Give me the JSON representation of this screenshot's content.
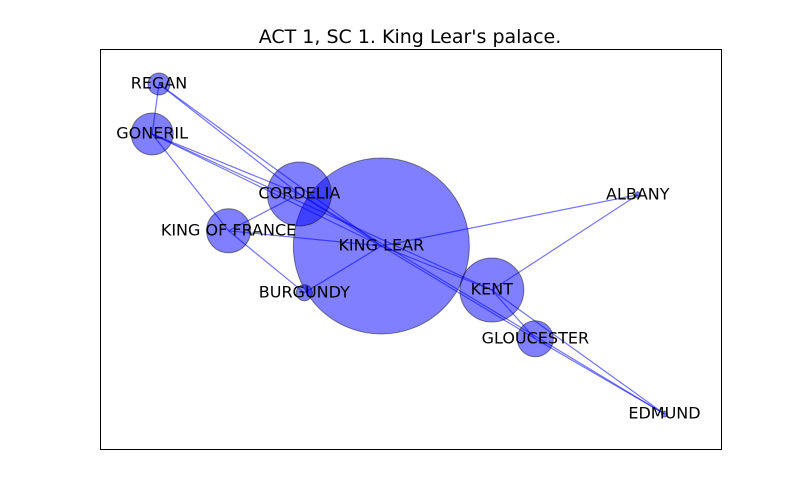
{
  "chart_data": {
    "type": "network",
    "title": "ACT 1, SC 1. King Lear's palace.",
    "xlim": [
      0,
      1
    ],
    "ylim": [
      0,
      1
    ],
    "node_color": "#0000ff",
    "edge_color": "#0000ff",
    "nodes": [
      {
        "id": "KING LEAR",
        "label": "KING LEAR",
        "x": 0.453,
        "y": 0.51,
        "size": 88
      },
      {
        "id": "CORDELIA",
        "label": "CORDELIA",
        "x": 0.321,
        "y": 0.64,
        "size": 32
      },
      {
        "id": "KENT",
        "label": "KENT",
        "x": 0.631,
        "y": 0.4,
        "size": 32
      },
      {
        "id": "GLOUCESTER",
        "label": "GLOUCESTER",
        "x": 0.701,
        "y": 0.278,
        "size": 18
      },
      {
        "id": "GONERIL",
        "label": "GONERIL",
        "x": 0.084,
        "y": 0.79,
        "size": 21
      },
      {
        "id": "KING OF FRANCE",
        "label": "KING OF FRANCE",
        "x": 0.207,
        "y": 0.548,
        "size": 22
      },
      {
        "id": "REGAN",
        "label": "REGAN",
        "x": 0.095,
        "y": 0.915,
        "size": 11
      },
      {
        "id": "BURGUNDY",
        "label": "BURGUNDY",
        "x": 0.329,
        "y": 0.393,
        "size": 8
      },
      {
        "id": "ALBANY",
        "label": "ALBANY",
        "x": 0.866,
        "y": 0.638,
        "size": 3
      },
      {
        "id": "EDMUND",
        "label": "EDMUND",
        "x": 0.909,
        "y": 0.09,
        "size": 3
      }
    ],
    "edges": [
      [
        "REGAN",
        "GONERIL"
      ],
      [
        "REGAN",
        "KING LEAR"
      ],
      [
        "REGAN",
        "CORDELIA"
      ],
      [
        "GONERIL",
        "CORDELIA"
      ],
      [
        "GONERIL",
        "KING LEAR"
      ],
      [
        "GONERIL",
        "KING OF FRANCE"
      ],
      [
        "GONERIL",
        "KENT"
      ],
      [
        "CORDELIA",
        "KING OF FRANCE"
      ],
      [
        "CORDELIA",
        "KING LEAR"
      ],
      [
        "KING OF FRANCE",
        "KING LEAR"
      ],
      [
        "KING OF FRANCE",
        "BURGUNDY"
      ],
      [
        "BURGUNDY",
        "KING LEAR"
      ],
      [
        "KING LEAR",
        "KENT"
      ],
      [
        "KING LEAR",
        "ALBANY"
      ],
      [
        "KING LEAR",
        "GLOUCESTER"
      ],
      [
        "KENT",
        "ALBANY"
      ],
      [
        "KENT",
        "GLOUCESTER"
      ],
      [
        "KENT",
        "EDMUND"
      ],
      [
        "GLOUCESTER",
        "EDMUND"
      ],
      [
        "CORDELIA",
        "EDMUND"
      ]
    ]
  }
}
